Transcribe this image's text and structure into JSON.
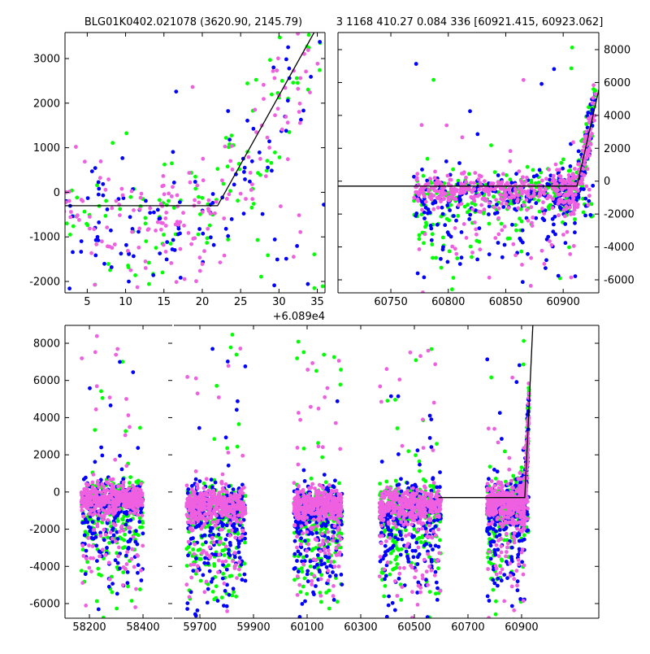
{
  "chart_data": {
    "type": "scatter",
    "title_left": "BLG01K0402.021078 (3620.90, 2145.79)",
    "title_right": "3 1168 410.27 0.084 336 [60921.415, 60923.062]",
    "colors": {
      "blue": "#0000ff",
      "green": "#00ff00",
      "magenta": "#ee60e0",
      "fit": "#000000"
    },
    "series": [
      {
        "name": "green",
        "color": "#00ff00"
      },
      {
        "name": "blue",
        "color": "#0000ff"
      },
      {
        "name": "magenta",
        "color": "#ee60e0"
      }
    ],
    "seasons": [
      {
        "x_range": [
          58170,
          58400
        ],
        "core_y": -300,
        "core_sd": 500
      },
      {
        "x_range": [
          59650,
          59870
        ],
        "core_y": -700,
        "core_sd": 550
      },
      {
        "x_range": [
          60050,
          60230
        ],
        "core_y": -700,
        "core_sd": 550
      },
      {
        "x_range": [
          60370,
          60600
        ],
        "core_y": -700,
        "core_sd": 550
      },
      {
        "x_range": [
          60770,
          60928
        ],
        "core_y": -500,
        "core_sd": 550
      }
    ],
    "fit_line": [
      [
        60590,
        -300
      ],
      [
        60912,
        -300
      ],
      [
        60942,
        8960
      ]
    ],
    "panels": {
      "top_left": {
        "xlim": [
          60892.1,
          60926
        ],
        "ylim": [
          -2255,
          3584
        ],
        "x_offset": 60890,
        "xticks": [
          5,
          10,
          15,
          20,
          25,
          30,
          35
        ],
        "yticks": [
          -2000,
          -1000,
          0,
          1000,
          2000,
          3000
        ],
        "offset_label": "+6.089e4"
      },
      "top_right": {
        "xlim": [
          60704,
          60931
        ],
        "ylim": [
          -6792,
          9039
        ],
        "xticks": [
          60750,
          60800,
          60850,
          60900
        ],
        "yticks": [
          -6000,
          -4000,
          -2000,
          0,
          2000,
          4000,
          6000,
          8000
        ]
      },
      "bottom_left": {
        "xlim": [
          58109,
          58509
        ],
        "ylim": [
          -6788,
          8962
        ],
        "xticks": [
          58200,
          58400
        ],
        "yticks": [
          -6000,
          -4000,
          -2000,
          0,
          2000,
          4000,
          6000,
          8000
        ]
      },
      "bottom_right": {
        "xlim": [
          59603,
          61188
        ],
        "ylim": [
          -6788,
          8962
        ],
        "xticks": [
          59700,
          59900,
          60100,
          60300,
          60500,
          60700,
          60900
        ]
      }
    }
  }
}
